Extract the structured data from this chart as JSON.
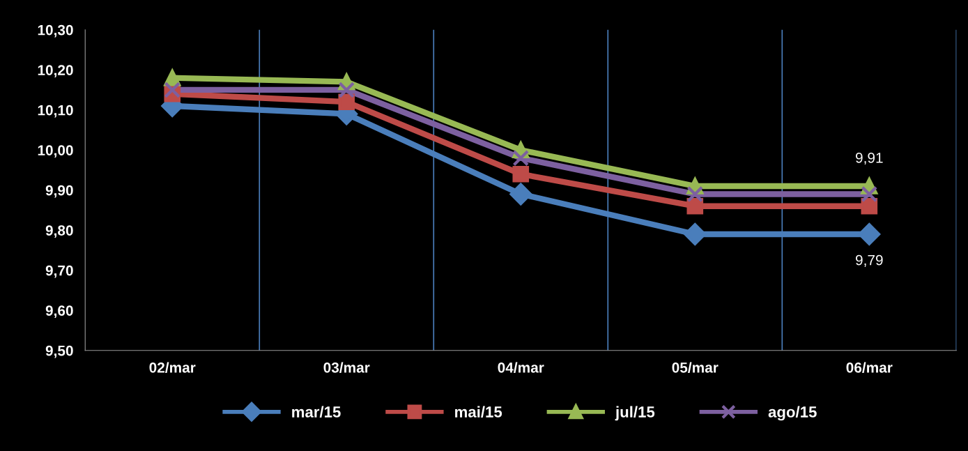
{
  "chart_data": {
    "type": "line",
    "categories": [
      "02/mar",
      "03/mar",
      "04/mar",
      "05/mar",
      "06/mar"
    ],
    "series": [
      {
        "name": "mar/15",
        "color": "#4a7ebb",
        "marker": "diamond",
        "values": [
          10.11,
          10.09,
          9.89,
          9.79,
          9.79
        ],
        "value_labels": [
          null,
          null,
          null,
          null,
          "9,79"
        ]
      },
      {
        "name": "mai/15",
        "color": "#be4b48",
        "marker": "square",
        "values": [
          10.14,
          10.12,
          9.94,
          9.86,
          9.86
        ]
      },
      {
        "name": "jul/15",
        "color": "#98b954",
        "marker": "triangle",
        "values": [
          10.18,
          10.17,
          10.0,
          9.91,
          9.91
        ],
        "value_labels": [
          null,
          null,
          null,
          null,
          "9,91"
        ]
      },
      {
        "name": "ago/15",
        "color": "#7d60a0",
        "marker": "cross",
        "values": [
          10.15,
          10.15,
          9.98,
          9.89,
          9.89
        ]
      }
    ],
    "ylim": [
      9.5,
      10.3
    ],
    "yticks": [
      {
        "value": 9.5,
        "label": "9,50"
      },
      {
        "value": 9.6,
        "label": "9,60"
      },
      {
        "value": 9.7,
        "label": "9,70"
      },
      {
        "value": 9.8,
        "label": "9,80"
      },
      {
        "value": 9.9,
        "label": "9,90"
      },
      {
        "value": 10.0,
        "label": "10,00"
      },
      {
        "value": 10.1,
        "label": "10,10"
      },
      {
        "value": 10.2,
        "label": "10,20"
      },
      {
        "value": 10.3,
        "label": "10,30"
      }
    ],
    "grid": "x",
    "legend": "bottom",
    "line_style": "solid"
  }
}
